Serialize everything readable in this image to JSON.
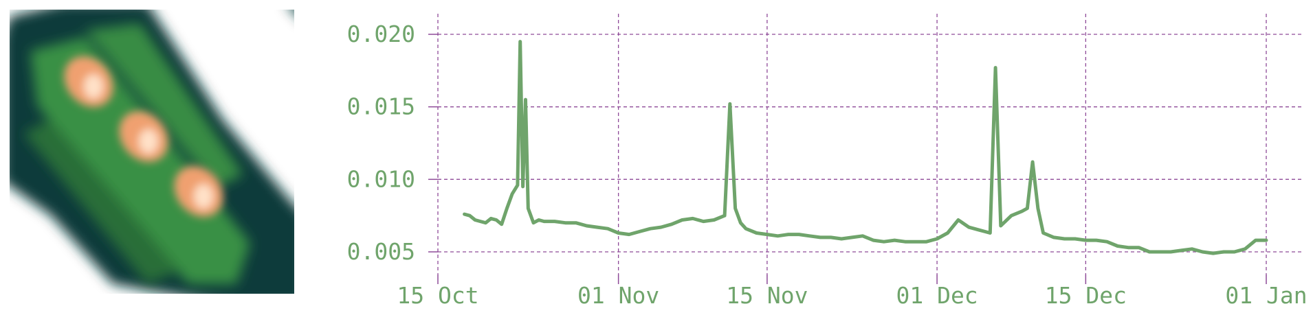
{
  "thumbnail": {
    "icon": "spectral-stripe-thumbnail",
    "colors": {
      "background": "#ffffff",
      "dark": "#0e3b3a",
      "green": "#3f9a45",
      "orange": "#f0a070",
      "highlight": "#ffe1c8"
    }
  },
  "chart_data": {
    "type": "line",
    "title": "",
    "xlabel": "",
    "ylabel": "",
    "xlim": [
      "2023-10-15",
      "2024-01-01"
    ],
    "ylim": [
      0.0035,
      0.0205
    ],
    "grid": true,
    "legend": "none",
    "colors": {
      "line": "#6fa46b",
      "grid": "#8e4a98",
      "tick_text": "#6fa46b"
    },
    "x_ticks": [
      {
        "date": "2023-10-15",
        "label": "15 Oct"
      },
      {
        "date": "2023-11-01",
        "label": "01 Nov"
      },
      {
        "date": "2023-11-15",
        "label": "15 Nov"
      },
      {
        "date": "2023-12-01",
        "label": "01 Dec"
      },
      {
        "date": "2023-12-15",
        "label": "15 Dec"
      },
      {
        "date": "2024-01-01",
        "label": "01 Jan"
      }
    ],
    "y_ticks": [
      {
        "value": 0.005,
        "label": "0.005"
      },
      {
        "value": 0.01,
        "label": "0.010"
      },
      {
        "value": 0.015,
        "label": "0.015"
      },
      {
        "value": 0.02,
        "label": "0.020"
      }
    ],
    "series": [
      {
        "x": [
          "2023-10-17T12:00",
          "2023-10-18T00:00",
          "2023-10-18T12:00",
          "2023-10-19T00:00",
          "2023-10-19T12:00",
          "2023-10-20T00:00",
          "2023-10-20T12:00",
          "2023-10-21T00:00",
          "2023-10-21T12:00",
          "2023-10-22T00:00",
          "2023-10-22T12:00",
          "2023-10-22T18:00",
          "2023-10-23T00:00",
          "2023-10-23T06:00",
          "2023-10-23T12:00",
          "2023-10-24T00:00",
          "2023-10-24T12:00",
          "2023-10-25T00:00",
          "2023-10-26T00:00",
          "2023-10-27T00:00",
          "2023-10-28T00:00",
          "2023-10-29T00:00",
          "2023-10-30T00:00",
          "2023-10-31T00:00",
          "2023-11-01T00:00",
          "2023-11-02T00:00",
          "2023-11-03T00:00",
          "2023-11-04T00:00",
          "2023-11-05T00:00",
          "2023-11-06T00:00",
          "2023-11-07T00:00",
          "2023-11-08T00:00",
          "2023-11-09T00:00",
          "2023-11-10T00:00",
          "2023-11-11T00:00",
          "2023-11-11T12:00",
          "2023-11-12T00:00",
          "2023-11-12T12:00",
          "2023-11-13T00:00",
          "2023-11-14T00:00",
          "2023-11-15T00:00",
          "2023-11-16T00:00",
          "2023-11-17T00:00",
          "2023-11-18T00:00",
          "2023-11-19T00:00",
          "2023-11-20T00:00",
          "2023-11-21T00:00",
          "2023-11-22T00:00",
          "2023-11-23T00:00",
          "2023-11-24T00:00",
          "2023-11-25T00:00",
          "2023-11-26T00:00",
          "2023-11-27T00:00",
          "2023-11-28T00:00",
          "2023-11-29T00:00",
          "2023-11-30T00:00",
          "2023-12-01T00:00",
          "2023-12-02T00:00",
          "2023-12-03T00:00",
          "2023-12-04T00:00",
          "2023-12-05T00:00",
          "2023-12-05T12:00",
          "2023-12-06T00:00",
          "2023-12-06T12:00",
          "2023-12-07T00:00",
          "2023-12-08T00:00",
          "2023-12-09T00:00",
          "2023-12-09T12:00",
          "2023-12-10T00:00",
          "2023-12-10T12:00",
          "2023-12-11T00:00",
          "2023-12-12T00:00",
          "2023-12-13T00:00",
          "2023-12-14T00:00",
          "2023-12-15T00:00",
          "2023-12-16T00:00",
          "2023-12-17T00:00",
          "2023-12-18T00:00",
          "2023-12-19T00:00",
          "2023-12-20T00:00",
          "2023-12-21T00:00",
          "2023-12-22T00:00",
          "2023-12-23T00:00",
          "2023-12-24T00:00",
          "2023-12-25T00:00",
          "2023-12-26T00:00",
          "2023-12-27T00:00",
          "2023-12-28T00:00",
          "2023-12-29T00:00",
          "2023-12-30T00:00",
          "2023-12-31T00:00",
          "2024-01-01T00:00"
        ],
        "y": [
          0.0076,
          0.0075,
          0.0072,
          0.0071,
          0.007,
          0.0073,
          0.0072,
          0.0069,
          0.008,
          0.009,
          0.0096,
          0.0195,
          0.0095,
          0.0155,
          0.008,
          0.007,
          0.0072,
          0.0071,
          0.0071,
          0.007,
          0.007,
          0.0068,
          0.0067,
          0.0066,
          0.0063,
          0.0062,
          0.0064,
          0.0066,
          0.0067,
          0.0069,
          0.0072,
          0.0073,
          0.0071,
          0.0072,
          0.0075,
          0.0152,
          0.008,
          0.007,
          0.0066,
          0.0063,
          0.0062,
          0.0061,
          0.0062,
          0.0062,
          0.0061,
          0.006,
          0.006,
          0.0059,
          0.006,
          0.0061,
          0.0058,
          0.0057,
          0.0058,
          0.0057,
          0.0057,
          0.0057,
          0.0059,
          0.0063,
          0.0072,
          0.0067,
          0.0065,
          0.0064,
          0.0063,
          0.0177,
          0.0068,
          0.0075,
          0.0078,
          0.008,
          0.0112,
          0.008,
          0.0063,
          0.006,
          0.0059,
          0.0059,
          0.0058,
          0.0058,
          0.0057,
          0.0054,
          0.0053,
          0.0053,
          0.005,
          0.005,
          0.005,
          0.0051,
          0.0052,
          0.005,
          0.0049,
          0.005,
          0.005,
          0.0052,
          0.0058,
          0.0058
        ]
      }
    ]
  }
}
